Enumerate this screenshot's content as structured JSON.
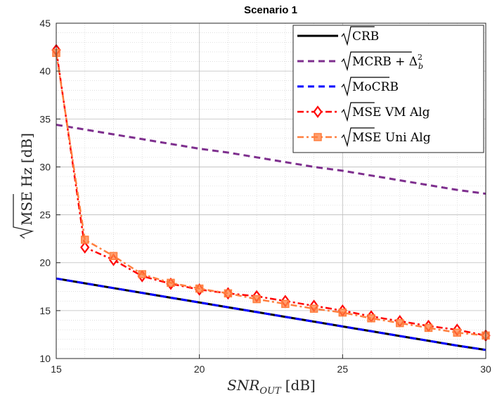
{
  "chart_data": {
    "type": "line",
    "title": "Scenario 1",
    "xlabel": {
      "main": "SNR",
      "sub": "OUT",
      "unit": "[dB]"
    },
    "ylabel": {
      "root": "MSE",
      "unit": "Hz",
      "bracket": "[dB]"
    },
    "xlim": [
      15,
      30
    ],
    "ylim": [
      10,
      45
    ],
    "xticks": [
      15,
      20,
      25,
      30
    ],
    "yticks": [
      10,
      15,
      20,
      25,
      30,
      35,
      40,
      45
    ],
    "grid": true,
    "minor_grid": true,
    "legend_position": "top-right",
    "x": [
      15,
      16,
      17,
      18,
      19,
      20,
      21,
      22,
      23,
      24,
      25,
      26,
      27,
      28,
      29,
      30
    ],
    "series": [
      {
        "key": "crb",
        "legend": {
          "root": "CRB",
          "suffix": ""
        },
        "color": "#000000",
        "style": "solid",
        "marker": "none",
        "values": [
          18.35,
          17.85,
          17.35,
          16.85,
          16.35,
          15.85,
          15.35,
          14.85,
          14.35,
          13.85,
          13.35,
          12.85,
          12.35,
          11.85,
          11.35,
          10.9
        ]
      },
      {
        "key": "mcrb",
        "legend": {
          "root": "MCRB + Δ",
          "sub": "b",
          "sup": "2"
        },
        "color": "#7e2f8e",
        "style": "dashed",
        "marker": "none",
        "values": [
          34.4,
          33.9,
          33.4,
          32.9,
          32.4,
          31.9,
          31.5,
          31.0,
          30.5,
          30.0,
          29.6,
          29.1,
          28.6,
          28.1,
          27.6,
          27.2
        ]
      },
      {
        "key": "mocrb",
        "legend": {
          "root": "MoCRB",
          "suffix": ""
        },
        "color": "#0000ff",
        "style": "dashed",
        "marker": "none",
        "values": [
          18.35,
          17.85,
          17.35,
          16.85,
          16.35,
          15.85,
          15.35,
          14.85,
          14.35,
          13.85,
          13.35,
          12.85,
          12.35,
          11.85,
          11.35,
          10.9
        ]
      },
      {
        "key": "vm",
        "legend": {
          "root": "MSE",
          "suffix": " VM Alg"
        },
        "color": "#ff0000",
        "style": "dashdot",
        "marker": "diamond",
        "values": [
          42.2,
          21.6,
          20.3,
          18.6,
          17.8,
          17.2,
          16.8,
          16.5,
          16.0,
          15.5,
          15.0,
          14.4,
          13.9,
          13.4,
          13.0,
          12.4
        ]
      },
      {
        "key": "uni",
        "legend": {
          "root": "MSE",
          "suffix": " Uni Alg"
        },
        "color": "#ff7f3f",
        "style": "dashdot",
        "marker": "square",
        "values": [
          41.9,
          22.4,
          20.7,
          18.8,
          17.9,
          17.3,
          16.8,
          16.2,
          15.7,
          15.2,
          14.8,
          14.2,
          13.7,
          13.2,
          12.7,
          12.4
        ]
      }
    ]
  }
}
